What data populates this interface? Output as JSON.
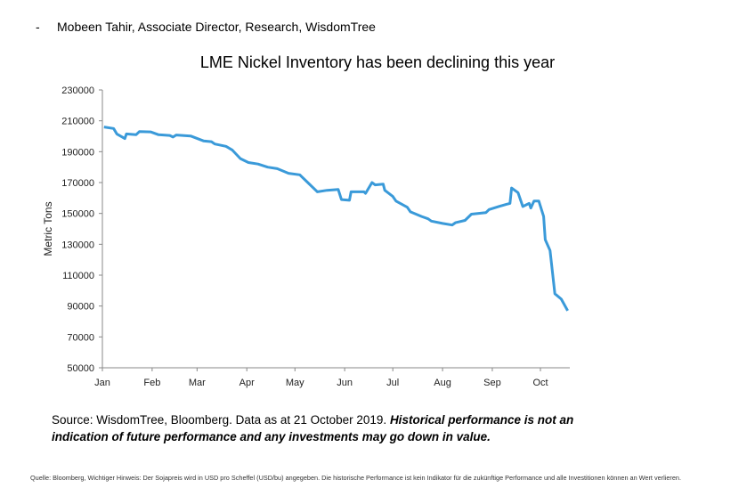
{
  "header": {
    "bullet": "-",
    "author": "Mobeen Tahir, Associate Director, Research, WisdomTree"
  },
  "source": {
    "plain": "Source: WisdomTree, Bloomberg. Data as at 21 October 2019. ",
    "bold": "Historical performance is not an indication of future performance and any investments may go down in value."
  },
  "footnote": "Quelle: Bloomberg, Wichtiger Hinweis: Der Sojapreis wird in USD pro Scheffel (USD/bu) angegeben. Die historische Performance ist kein Indikator für die zukünftige Performance und alle Investitionen können an Wert verlieren.",
  "chart_data": {
    "type": "line",
    "title": "LME Nickel Inventory has been declining this year",
    "xlabel": "",
    "ylabel": "Metric Tons",
    "ylim": [
      50000,
      230000
    ],
    "yticks": [
      "50000",
      "70000",
      "90000",
      "110000",
      "130000",
      "150000",
      "170000",
      "190000",
      "210000",
      "230000"
    ],
    "xticks": [
      "Jan",
      "Feb",
      "Mar",
      "Apr",
      "May",
      "Jun",
      "Jul",
      "Aug",
      "Sep",
      "Oct"
    ],
    "grid": false,
    "line_color": "#3a9ad9",
    "series": [
      {
        "x": [
          "2019-01-02",
          "2019-01-08",
          "2019-01-10",
          "2019-01-15",
          "2019-01-16",
          "2019-01-22",
          "2019-01-24",
          "2019-01-31",
          "2019-02-05",
          "2019-02-12",
          "2019-02-14",
          "2019-02-16",
          "2019-02-25",
          "2019-03-05",
          "2019-03-10",
          "2019-03-12",
          "2019-03-19",
          "2019-03-23",
          "2019-03-28",
          "2019-04-02",
          "2019-04-08",
          "2019-04-14",
          "2019-04-20",
          "2019-04-27",
          "2019-05-04",
          "2019-05-09",
          "2019-05-15",
          "2019-05-21",
          "2019-05-28",
          "2019-05-30",
          "2019-06-04",
          "2019-06-05",
          "2019-06-13",
          "2019-06-14",
          "2019-06-18",
          "2019-06-20",
          "2019-06-25",
          "2019-06-26",
          "2019-07-01",
          "2019-07-03",
          "2019-07-10",
          "2019-07-12",
          "2019-07-19",
          "2019-07-23",
          "2019-07-25",
          "2019-08-01",
          "2019-08-07",
          "2019-08-09",
          "2019-08-15",
          "2019-08-19",
          "2019-08-28",
          "2019-08-30",
          "2019-09-05",
          "2019-09-10",
          "2019-09-12",
          "2019-09-13",
          "2019-09-17",
          "2019-09-20",
          "2019-09-24",
          "2019-09-25",
          "2019-09-27",
          "2019-09-30",
          "2019-10-03",
          "2019-10-04",
          "2019-10-07",
          "2019-10-10",
          "2019-10-14",
          "2019-10-18"
        ],
        "y": [
          206000,
          205000,
          201500,
          198500,
          201500,
          201000,
          203000,
          202800,
          201000,
          200500,
          199500,
          200800,
          200200,
          197000,
          196500,
          195000,
          193500,
          191000,
          185500,
          183000,
          182000,
          180000,
          179000,
          176000,
          175000,
          170000,
          164000,
          165000,
          165500,
          159000,
          158500,
          164000,
          164000,
          163000,
          170000,
          168500,
          169000,
          165000,
          161000,
          158000,
          154000,
          151000,
          148000,
          146500,
          145000,
          143500,
          142500,
          144000,
          145500,
          149500,
          150500,
          152500,
          154500,
          156000,
          156500,
          166500,
          163500,
          154500,
          156500,
          153500,
          158000,
          158000,
          148000,
          133000,
          126000,
          98000,
          94500,
          87000
        ]
      }
    ]
  }
}
